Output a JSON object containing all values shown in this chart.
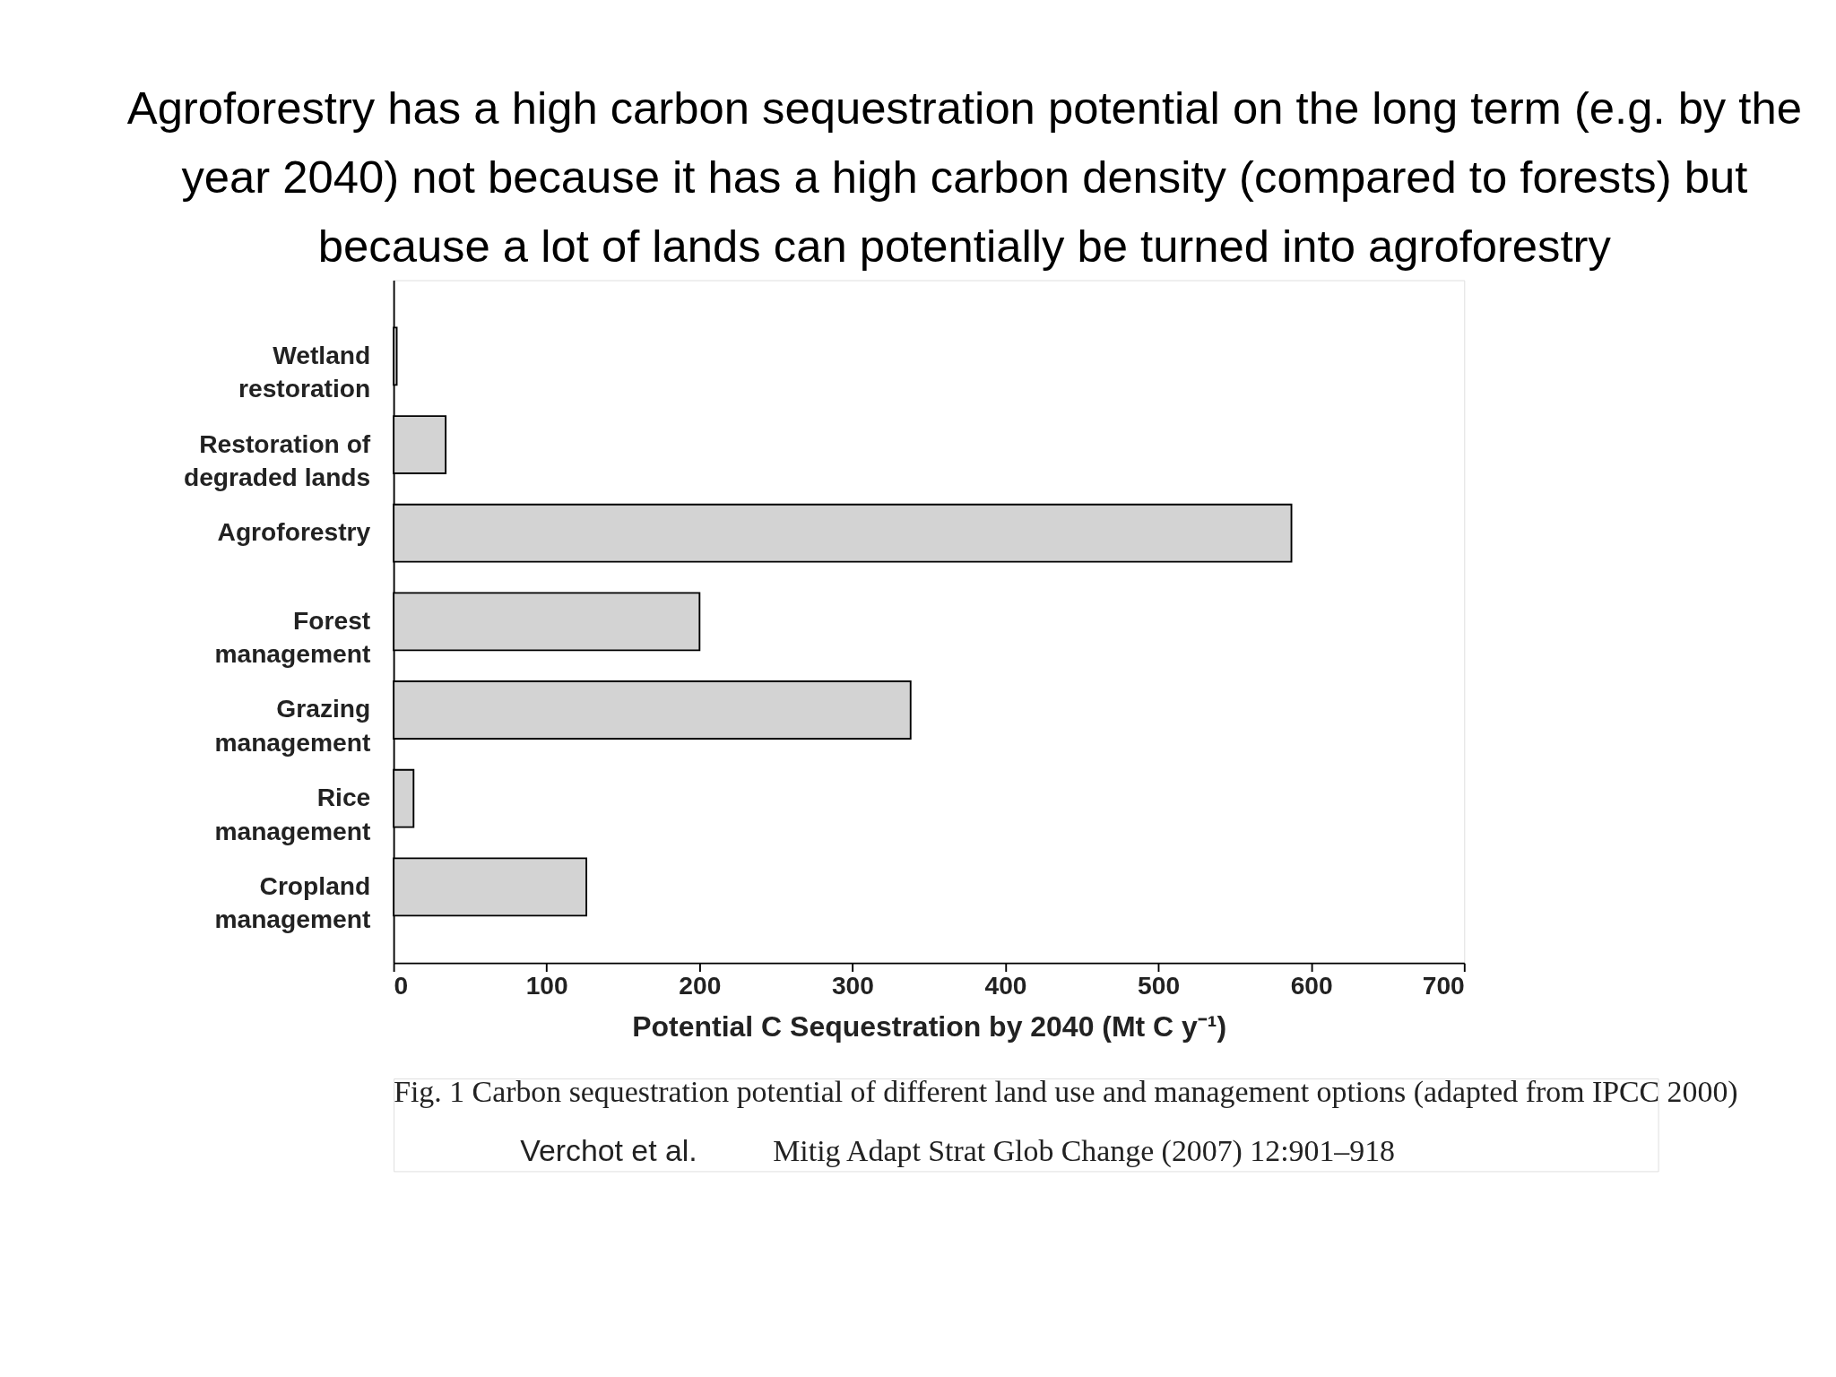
{
  "chart_data": {
    "type": "bar",
    "orientation": "horizontal",
    "title": "Agroforestry has a high carbon sequestration potential on the long term (e.g. by the year 2040) not because it has a high carbon density (compared to forests) but because a lot of lands can potentially be turned into agroforestry",
    "categories": [
      "Wetland\nrestoration",
      "Restoration of\ndegraded lands",
      "Agroforestry",
      "Forest\nmanagement",
      "Grazing\nmanagement",
      "Rice\nmanagement",
      "Cropland\nmanagement"
    ],
    "values": [
      2,
      34,
      587,
      200,
      338,
      13,
      126
    ],
    "color": "#d3d3d3",
    "xlabel": "Potential C Sequestration by 2040 (Mt C y⁻¹)",
    "xlim": [
      0,
      700
    ],
    "xticks": [
      0,
      100,
      200,
      300,
      400,
      500,
      600,
      700
    ],
    "grid": false,
    "annotations": [
      "Fig. 1  Carbon sequestration potential of different land use and management options (adapted from IPCC 2000)",
      "Verchot et al.",
      "Mitig Adapt Strat Glob Change (2007) 12:901–918"
    ]
  }
}
